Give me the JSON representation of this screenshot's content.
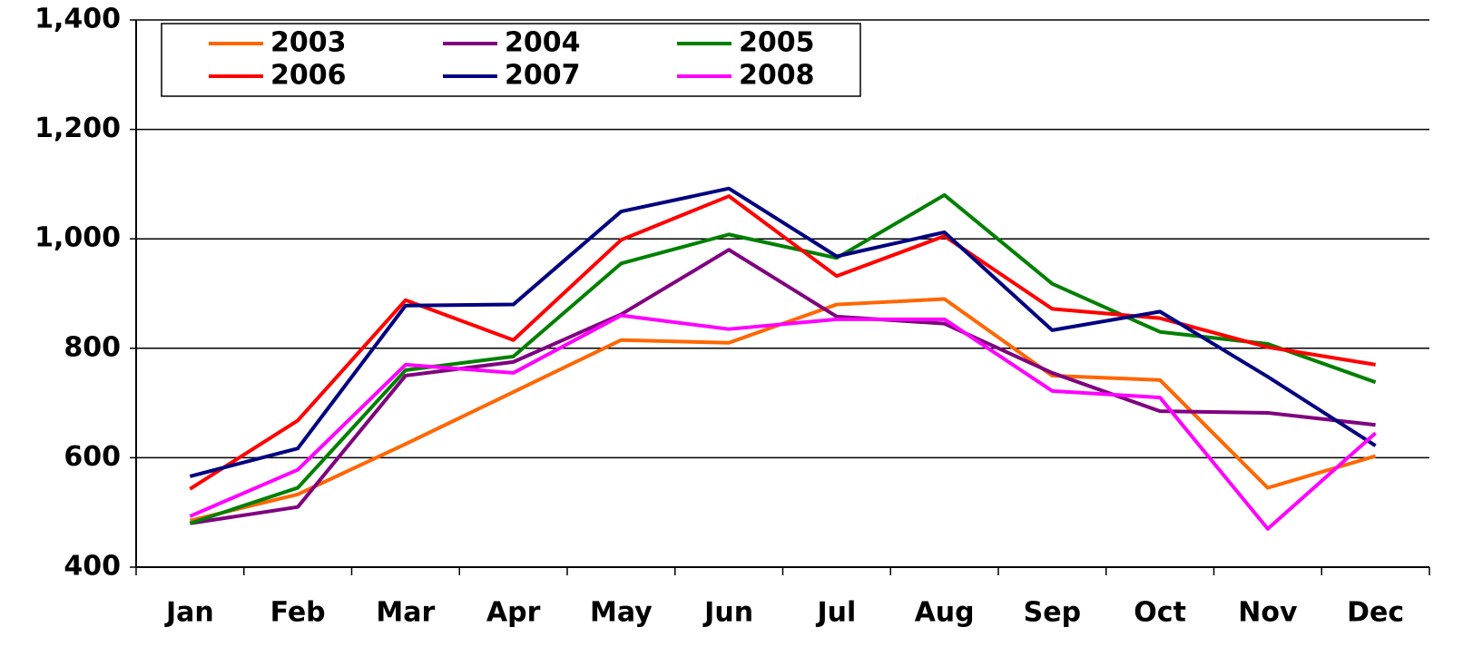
{
  "chart_data": {
    "type": "line",
    "categories": [
      "Jan",
      "Feb",
      "Mar",
      "Apr",
      "May",
      "Jun",
      "Jul",
      "Aug",
      "Sep",
      "Oct",
      "Nov",
      "Dec"
    ],
    "series": [
      {
        "name": "2003",
        "color": "#ff6600",
        "values": [
          485,
          533,
          625,
          720,
          815,
          810,
          880,
          890,
          750,
          742,
          545,
          603
        ]
      },
      {
        "name": "2004",
        "color": "#800080",
        "values": [
          480,
          510,
          750,
          775,
          862,
          980,
          858,
          845,
          755,
          685,
          682,
          660
        ]
      },
      {
        "name": "2005",
        "color": "#008000",
        "values": [
          480,
          545,
          760,
          785,
          955,
          1008,
          965,
          1080,
          918,
          830,
          808,
          738
        ]
      },
      {
        "name": "2006",
        "color": "#ff0000",
        "values": [
          543,
          668,
          888,
          815,
          998,
          1078,
          932,
          1005,
          872,
          855,
          802,
          770
        ]
      },
      {
        "name": "2007",
        "color": "#000080",
        "values": [
          566,
          617,
          878,
          880,
          1050,
          1092,
          968,
          1012,
          833,
          867,
          748,
          622
        ]
      },
      {
        "name": "2008",
        "color": "#ff00ff",
        "values": [
          493,
          578,
          770,
          755,
          860,
          835,
          853,
          853,
          722,
          710,
          470,
          645
        ]
      }
    ],
    "ylim": [
      400,
      1400
    ],
    "yticks": [
      400,
      600,
      800,
      {
        "value": 1000,
        "label": "1,000"
      },
      {
        "value": 1200,
        "label": "1,200"
      },
      {
        "value": 1400,
        "label": "1,400"
      }
    ],
    "grid": true,
    "legend": "top-left"
  }
}
